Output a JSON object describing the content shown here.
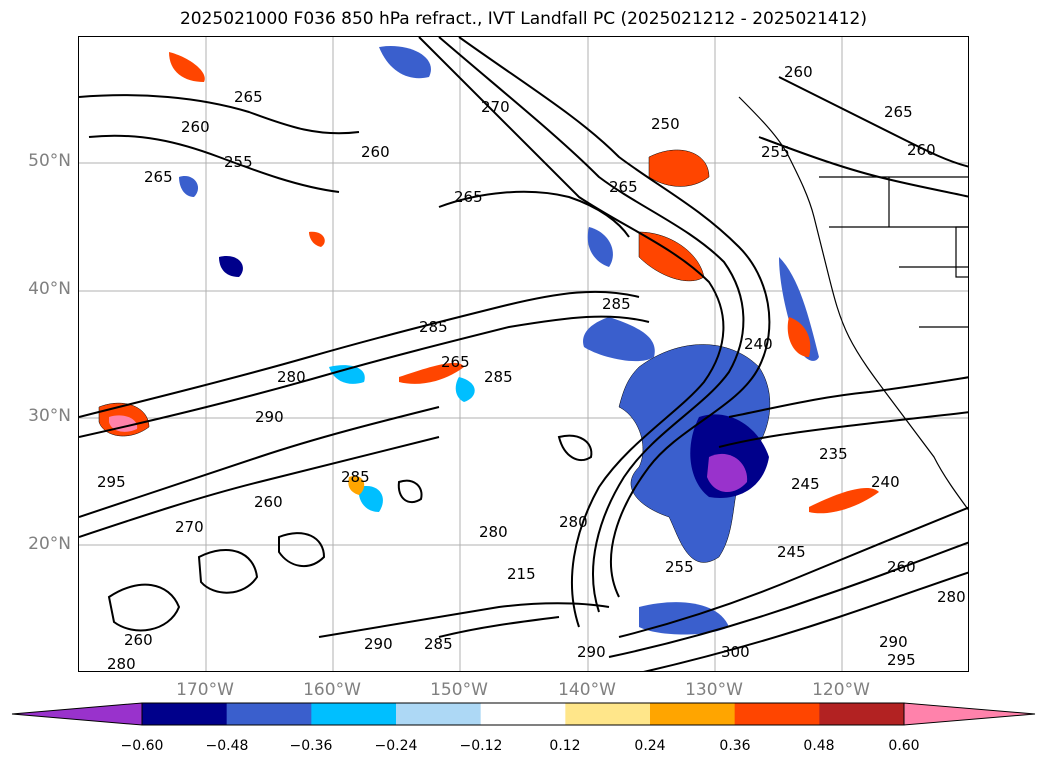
{
  "title": "2025021000 F036 850 hPa refract., IVT Landfall PC (2025021212 - 2025021412)",
  "map": {
    "region": "North-East Pacific",
    "grid": true,
    "projection": "PlateCarree",
    "lat_ticks": [
      "50°N",
      "40°N",
      "30°N",
      "20°N"
    ],
    "lon_ticks": [
      "170°W",
      "160°W",
      "150°W",
      "140°W",
      "130°W",
      "120°W"
    ],
    "contour_labels": [
      "265",
      "260",
      "255",
      "265",
      "260",
      "265",
      "270",
      "250",
      "255",
      "260",
      "265",
      "260",
      "265",
      "285",
      "285",
      "280",
      "265",
      "285",
      "290",
      "295",
      "240",
      "235",
      "245",
      "240",
      "255",
      "245",
      "260",
      "280",
      "290",
      "295",
      "300",
      "290",
      "285",
      "280",
      "260",
      "280",
      "290",
      "215",
      "280",
      "270",
      "260",
      "285"
    ],
    "contour_color": "#000000",
    "coastline_color": "#000000"
  },
  "colorbar": {
    "ticks": [
      "−0.60",
      "−0.48",
      "−0.36",
      "−0.24",
      "−0.12",
      "0.12",
      "0.24",
      "0.36",
      "0.48",
      "0.60"
    ],
    "colors": [
      "#9932CC",
      "#00008B",
      "#3A5FCD",
      "#00BFFF",
      "#ADD8F5",
      "#FFFFFF",
      "#FFE68A",
      "#FFA500",
      "#FF4500",
      "#B22222",
      "#FF82AB"
    ],
    "extend": "both"
  }
}
